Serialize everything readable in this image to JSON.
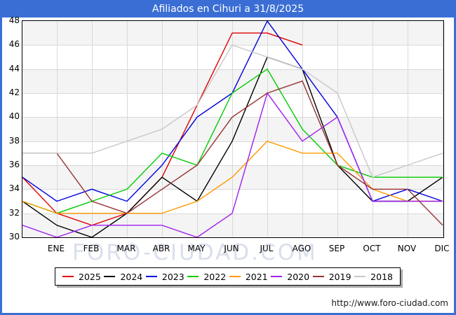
{
  "title": "Afiliados en Cihuri a 31/8/2025",
  "footer_url": "http://www.foro-ciudad.com",
  "watermark": "FORO-CIUDAD.COM",
  "colors": {
    "titlebar": "#3a6ed4",
    "page_border": "#3a6ed4",
    "band_shaded": "#f4f4f4",
    "gridline": "#d9d9d9"
  },
  "chart_data": {
    "type": "line",
    "title": "Afiliados en Cihuri a 31/8/2025",
    "x_labels": [
      "ENE",
      "FEB",
      "MAR",
      "ABR",
      "MAY",
      "JUN",
      "JUL",
      "AGO",
      "SEP",
      "OCT",
      "NOV",
      "DIC"
    ],
    "x_note": "Each series has 13 points: the first sits on the left axis (previous December carry-over), followed by the 12 months.",
    "ylim": [
      30,
      48
    ],
    "y_ticks": [
      30,
      32,
      34,
      36,
      38,
      40,
      42,
      44,
      46,
      48
    ],
    "grid": true,
    "legend_position": "bottom",
    "series": [
      {
        "name": "2025",
        "color": "#e00000",
        "values": [
          35,
          32,
          31,
          32,
          35,
          41,
          47,
          47,
          46,
          null,
          null,
          null,
          null
        ]
      },
      {
        "name": "2024",
        "color": "#000000",
        "values": [
          33,
          31,
          30,
          32,
          35,
          33,
          38,
          45,
          44,
          36,
          33,
          33,
          35
        ]
      },
      {
        "name": "2023",
        "color": "#0000dd",
        "values": [
          35,
          33,
          34,
          33,
          36,
          40,
          42,
          48,
          44,
          40,
          33,
          34,
          33
        ]
      },
      {
        "name": "2022",
        "color": "#00cc00",
        "values": [
          33,
          32,
          33,
          34,
          37,
          36,
          42,
          44,
          39,
          36,
          35,
          35,
          35
        ]
      },
      {
        "name": "2021",
        "color": "#ff9900",
        "values": [
          33,
          32,
          32,
          32,
          32,
          33,
          35,
          38,
          37,
          37,
          34,
          33,
          33
        ]
      },
      {
        "name": "2020",
        "color": "#a020f0",
        "values": [
          31,
          30,
          31,
          31,
          31,
          30,
          32,
          42,
          38,
          40,
          33,
          33,
          33
        ]
      },
      {
        "name": "2019",
        "color": "#993333",
        "values": [
          37,
          37,
          33,
          32,
          34,
          36,
          40,
          42,
          43,
          36,
          34,
          34,
          31
        ]
      },
      {
        "name": "2018",
        "color": "#c8c8c8",
        "values": [
          37,
          37,
          37,
          38,
          39,
          41,
          46,
          45,
          44,
          42,
          35,
          36,
          37
        ]
      }
    ]
  }
}
